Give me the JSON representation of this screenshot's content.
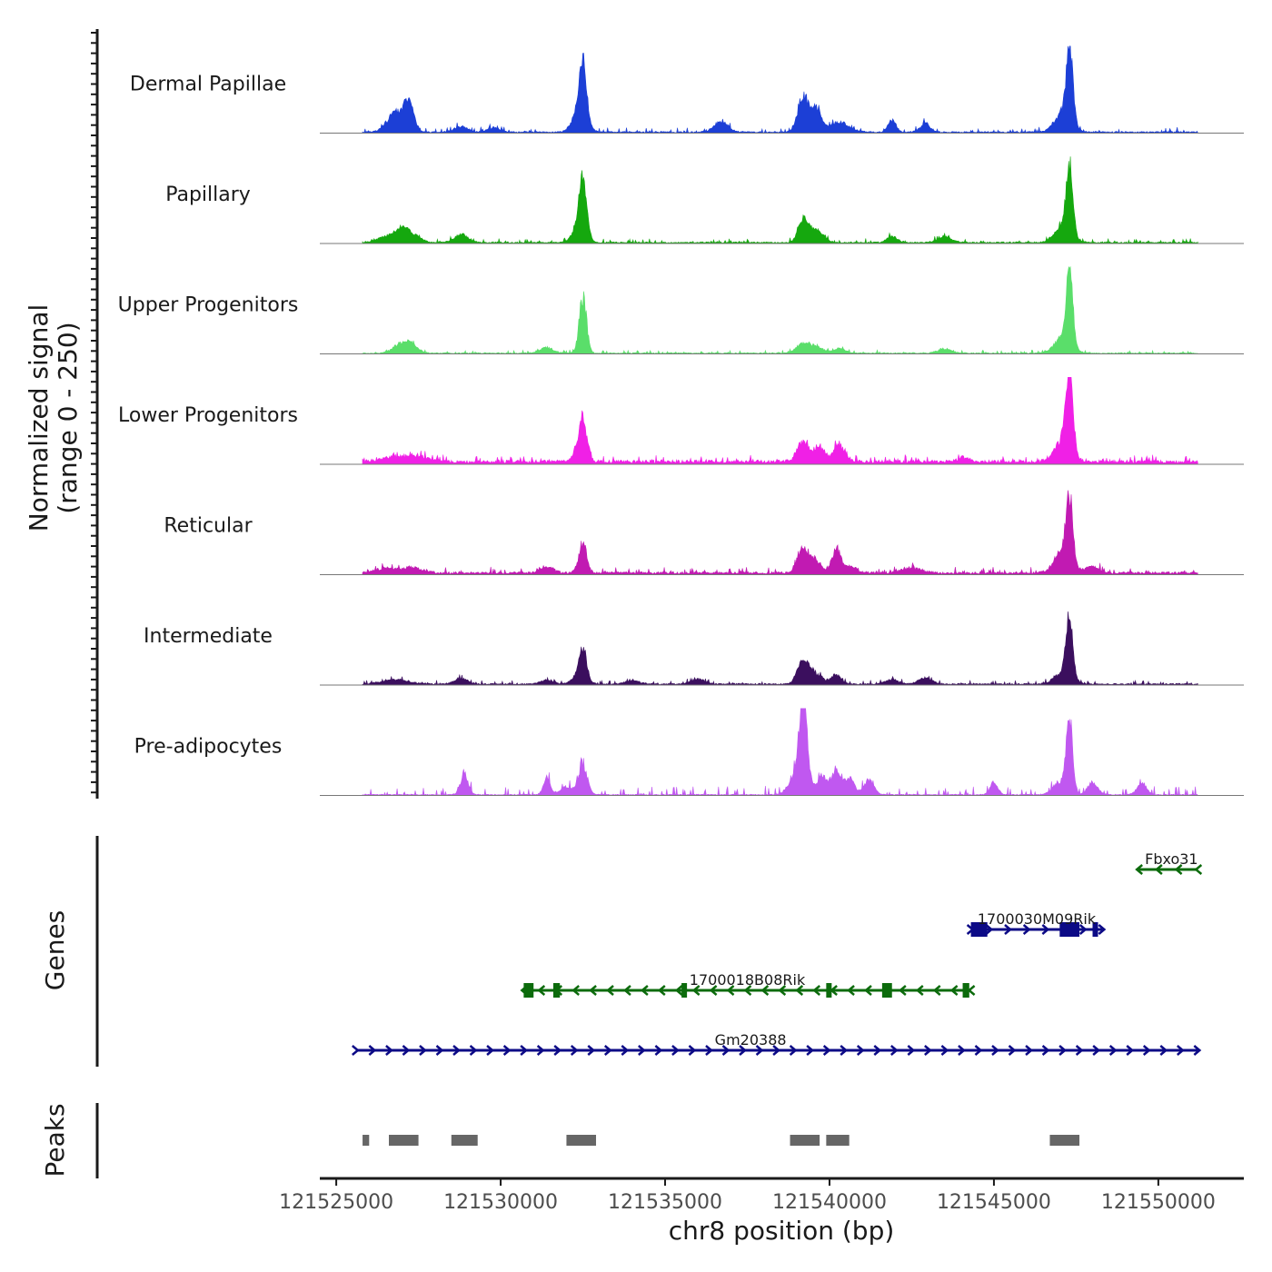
{
  "chart_data": {
    "type": "area",
    "title": "",
    "ylabel_line1": "Normalized signal",
    "ylabel_line2": "(range 0 - 250)",
    "xlabel": "chr8 position (bp)",
    "genes_label": "Genes",
    "peaks_label": "Peaks",
    "ylim": [
      0,
      250
    ],
    "xlim": [
      121524500,
      121552600
    ],
    "data_xlim": [
      121525800,
      121551200
    ],
    "x_ticks": [
      121525000,
      121530000,
      121535000,
      121540000,
      121545000,
      121550000
    ],
    "x_tick_labels": [
      "121525000",
      "121530000",
      "121535000",
      "121540000",
      "121545000",
      "121550000"
    ],
    "series": [
      {
        "name": "Dermal Papillae",
        "color": "#1c3fd6",
        "base": 4,
        "noise": 6,
        "peaks": [
          [
            121526800,
            60,
            250
          ],
          [
            121527200,
            95,
            150
          ],
          [
            121528800,
            18,
            200
          ],
          [
            121529800,
            14,
            200
          ],
          [
            121532500,
            180,
            110
          ],
          [
            121532400,
            70,
            200
          ],
          [
            121536700,
            38,
            200
          ],
          [
            121539200,
            120,
            160
          ],
          [
            121539600,
            70,
            150
          ],
          [
            121540300,
            30,
            300
          ],
          [
            121541900,
            38,
            120
          ],
          [
            121542900,
            28,
            140
          ],
          [
            121547300,
            245,
            100
          ],
          [
            121547100,
            60,
            250
          ]
        ]
      },
      {
        "name": "Papillary",
        "color": "#15a80e",
        "base": 4,
        "noise": 5,
        "peaks": [
          [
            121526500,
            20,
            250
          ],
          [
            121527000,
            45,
            200
          ],
          [
            121527400,
            20,
            200
          ],
          [
            121528800,
            25,
            200
          ],
          [
            121532500,
            170,
            110
          ],
          [
            121532400,
            50,
            200
          ],
          [
            121539200,
            75,
            150
          ],
          [
            121539600,
            40,
            200
          ],
          [
            121541900,
            22,
            150
          ],
          [
            121543500,
            20,
            200
          ],
          [
            121547300,
            215,
            100
          ],
          [
            121547100,
            50,
            250
          ]
        ]
      },
      {
        "name": "Upper Progenitors",
        "color": "#5ade6a",
        "base": 3,
        "noise": 4,
        "peaks": [
          [
            121527000,
            30,
            250
          ],
          [
            121527300,
            20,
            200
          ],
          [
            121531400,
            18,
            200
          ],
          [
            121532500,
            180,
            110
          ],
          [
            121539200,
            32,
            200
          ],
          [
            121539600,
            18,
            200
          ],
          [
            121540300,
            14,
            200
          ],
          [
            121543500,
            14,
            200
          ],
          [
            121547300,
            240,
            100
          ],
          [
            121547100,
            50,
            250
          ]
        ]
      },
      {
        "name": "Lower Progenitors",
        "color": "#f020e6",
        "base": 10,
        "noise": 8,
        "peaks": [
          [
            121526800,
            16,
            400
          ],
          [
            121527500,
            16,
            300
          ],
          [
            121532500,
            115,
            120
          ],
          [
            121532400,
            30,
            200
          ],
          [
            121539200,
            70,
            180
          ],
          [
            121539700,
            45,
            150
          ],
          [
            121540300,
            55,
            180
          ],
          [
            121544100,
            14,
            200
          ],
          [
            121547300,
            270,
            100
          ],
          [
            121547100,
            70,
            250
          ]
        ]
      },
      {
        "name": "Reticular",
        "color": "#c11ab2",
        "base": 7,
        "noise": 7,
        "peaks": [
          [
            121526500,
            14,
            300
          ],
          [
            121527300,
            18,
            300
          ],
          [
            121531400,
            20,
            200
          ],
          [
            121532500,
            95,
            120
          ],
          [
            121539200,
            85,
            160
          ],
          [
            121539600,
            40,
            160
          ],
          [
            121540200,
            80,
            130
          ],
          [
            121540600,
            22,
            200
          ],
          [
            121542500,
            15,
            300
          ],
          [
            121547300,
            205,
            100
          ],
          [
            121547100,
            70,
            250
          ],
          [
            121548000,
            22,
            200
          ]
        ]
      },
      {
        "name": "Intermediate",
        "color": "#3b0f5e",
        "base": 4,
        "noise": 5,
        "peaks": [
          [
            121526800,
            14,
            400
          ],
          [
            121528800,
            18,
            200
          ],
          [
            121531400,
            12,
            200
          ],
          [
            121532500,
            95,
            110
          ],
          [
            121532400,
            30,
            200
          ],
          [
            121534000,
            12,
            200
          ],
          [
            121536000,
            16,
            200
          ],
          [
            121539200,
            80,
            170
          ],
          [
            121539600,
            30,
            200
          ],
          [
            121540200,
            30,
            150
          ],
          [
            121541900,
            16,
            200
          ],
          [
            121542900,
            20,
            200
          ],
          [
            121547300,
            190,
            100
          ],
          [
            121547100,
            40,
            250
          ]
        ]
      },
      {
        "name": "Pre-adipocytes",
        "color": "#c058f0",
        "base": 3,
        "noise": 12,
        "peaks": [
          [
            121528900,
            60,
            120
          ],
          [
            121531400,
            55,
            100
          ],
          [
            121532500,
            100,
            130
          ],
          [
            121532000,
            25,
            200
          ],
          [
            121539200,
            255,
            110
          ],
          [
            121539100,
            90,
            250
          ],
          [
            121539800,
            60,
            150
          ],
          [
            121540200,
            80,
            130
          ],
          [
            121540600,
            55,
            150
          ],
          [
            121541200,
            45,
            150
          ],
          [
            121547300,
            230,
            100
          ],
          [
            121547000,
            40,
            200
          ],
          [
            121548000,
            40,
            150
          ],
          [
            121549500,
            35,
            150
          ],
          [
            121545000,
            40,
            120
          ]
        ]
      }
    ],
    "genes": [
      {
        "name": "Fbxo31",
        "strand": "-",
        "start": 121549400,
        "end": 121551200,
        "row": 0,
        "color": "#0c6b0c",
        "exons": [],
        "label_x": 121550400
      },
      {
        "name": "1700030M09Rik",
        "strand": "+",
        "start": 121544300,
        "end": 121548300,
        "row": 1,
        "color": "#0c0a86",
        "exons": [
          [
            121544300,
            121544800
          ],
          [
            121547000,
            121547600
          ],
          [
            121548000,
            121548150
          ]
        ],
        "label_x": 121546300
      },
      {
        "name": "1700018B08Rik",
        "strand": "-",
        "start": 121530700,
        "end": 121544300,
        "row": 2,
        "color": "#0c6b0c",
        "exons": [
          [
            121530700,
            121531000
          ],
          [
            121531600,
            121531800
          ],
          [
            121535500,
            121535650
          ],
          [
            121539900,
            121540050
          ],
          [
            121541600,
            121541900
          ],
          [
            121544050,
            121544250
          ]
        ],
        "label_x": 121537500
      },
      {
        "name": "Gm20388",
        "strand": "+",
        "start": 121525600,
        "end": 121551200,
        "row": 3,
        "color": "#0c0a86",
        "exons": [],
        "label_x": 121537600
      }
    ],
    "peaks": [
      [
        121525800,
        121526000
      ],
      [
        121526600,
        121527500
      ],
      [
        121528500,
        121529300
      ],
      [
        121532000,
        121532900
      ],
      [
        121538800,
        121539700
      ],
      [
        121539900,
        121540600
      ],
      [
        121546700,
        121547600
      ]
    ]
  }
}
